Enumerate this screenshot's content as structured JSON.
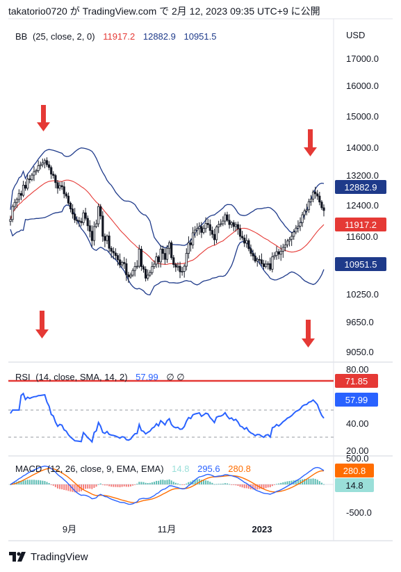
{
  "header": {
    "publish_line": "takatorio0720 が TradingView.com で 2月 12, 2023 09:35 UTC+9 に公開"
  },
  "footer": {
    "brand": "TradingView"
  },
  "colors": {
    "accent_red": "#e53935",
    "bb_band": "#1e3a8a",
    "bb_basis": "#e53935",
    "rsi_line": "#2962ff",
    "rsi_sma": "#e53935",
    "macd_line": "#2962ff",
    "signal_line": "#ff6d00",
    "hist_pos": "#26a69a",
    "hist_neg": "#ef5350",
    "label_blue": "#1e3a8a"
  },
  "chart_data": [
    {
      "id": "price",
      "type": "candlestick",
      "indicator": {
        "name": "BB",
        "params": "(25, close, 2, 0)",
        "basis": "11917.2",
        "upper": "12882.9",
        "lower": "10951.5"
      },
      "currency": "USD",
      "y_ticks": [
        "17000.0",
        "16000.0",
        "15000.0",
        "14000.0",
        "13200.0",
        "12400.0",
        "11600.0",
        "10250.0",
        "9650.0",
        "9050.0"
      ],
      "price_labels": {
        "upper": "12882.9",
        "basis": "11917.2",
        "lower": "10951.5"
      },
      "x_ticks": [
        "9月",
        "11月",
        "2023"
      ],
      "close": [
        12030,
        12362,
        12470,
        12550,
        12710,
        12660,
        12930,
        12850,
        13100,
        13080,
        13200,
        13300,
        13330,
        13470,
        13500,
        13555,
        13620,
        13500,
        13420,
        13230,
        13190,
        13000,
        12850,
        12920,
        12890,
        12700,
        12640,
        12450,
        12300,
        12170,
        12020,
        12000,
        11980,
        11950,
        12200,
        12060,
        11870,
        11730,
        11500,
        11850,
        11920,
        12360,
        12120,
        11600,
        11500,
        11610,
        11320,
        11250,
        11210,
        11150,
        11050,
        10930,
        10990,
        10960,
        10700,
        10650,
        10690,
        10800,
        10890,
        10900,
        11300,
        10890,
        10830,
        10620,
        10690,
        10750,
        10890,
        10950,
        11120,
        11000,
        11300,
        11200,
        11060,
        11320,
        11450,
        11100,
        10940,
        10880,
        10900,
        10770,
        10780,
        10900,
        11200,
        11450,
        11400,
        11690,
        11760,
        11800,
        11850,
        11700,
        11800,
        11930,
        11900,
        11750,
        11650,
        11520,
        11840,
        11900,
        11920,
        11990,
        12150,
        12010,
        11900,
        11950,
        11850,
        11900,
        11790,
        11600,
        11560,
        11440,
        11500,
        11310,
        11200,
        11140,
        11020,
        11060,
        11050,
        10960,
        10890,
        10950,
        10960,
        10830,
        11120,
        11150,
        11240,
        11180,
        11250,
        11340,
        11400,
        11490,
        11530,
        11600,
        11710,
        11810,
        11860,
        11950,
        12150,
        12250,
        12280,
        12490,
        12560,
        12750,
        12700,
        12640,
        12480,
        12330,
        12260
      ]
    },
    {
      "id": "rsi",
      "type": "line",
      "indicator": {
        "name": "RSI",
        "params": "(14, close, SMA, 14, 2)",
        "value": "57.99",
        "flags": "∅  ∅"
      },
      "y_ticks": [
        "80.00",
        "40.00",
        "20.00"
      ],
      "price_labels": {
        "sma": "71.85",
        "rsi": "57.99"
      },
      "rsi_sma": 71.85
    },
    {
      "id": "macd",
      "type": "line",
      "indicator": {
        "name": "MACD",
        "params": "(12, 26, close, 9, EMA, EMA)",
        "histogram": "14.8",
        "macd": "295.6",
        "signal": "280.8"
      },
      "y_ticks": [
        "500.0",
        "-500.0"
      ],
      "price_labels": {
        "signal": "280.8",
        "histogram": "14.8"
      }
    }
  ]
}
